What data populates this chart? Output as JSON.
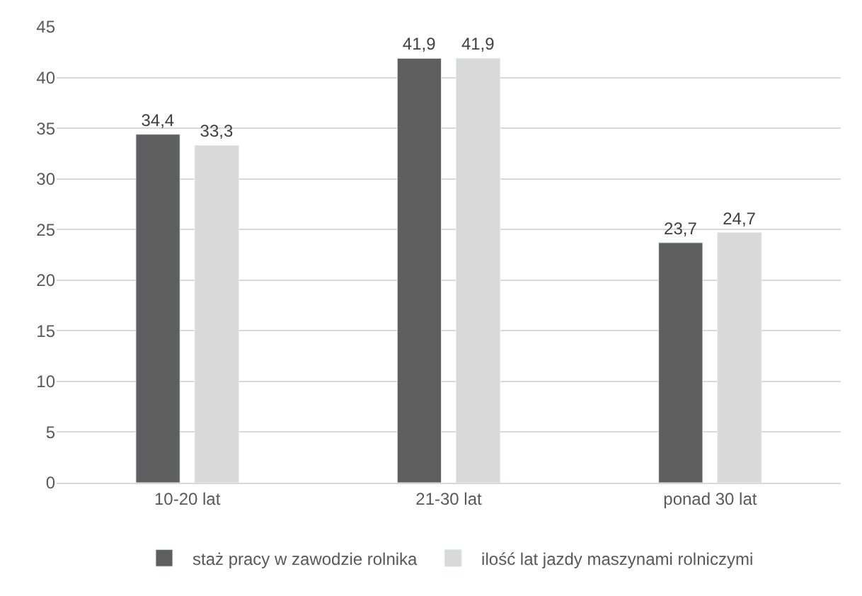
{
  "chart_data": {
    "type": "bar",
    "categories": [
      "10-20 lat",
      "21-30 lat",
      "ponad 30 lat"
    ],
    "series": [
      {
        "name": "staż pracy w zawodzie rolnika",
        "color": "#5f5f5f",
        "values": [
          34.4,
          41.9,
          23.7
        ],
        "value_labels": [
          "34,4",
          "41,9",
          "23,7"
        ]
      },
      {
        "name": "ilość lat jazdy maszynami rolniczymi",
        "color": "#d9d9d9",
        "values": [
          33.3,
          41.9,
          24.7
        ],
        "value_labels": [
          "33,3",
          "41,9",
          "24,7"
        ]
      }
    ],
    "ylim": [
      0,
      45
    ],
    "yticks": [
      0,
      5,
      10,
      15,
      20,
      25,
      30,
      35,
      40,
      45
    ],
    "grid": "y",
    "legend": "bottom"
  }
}
